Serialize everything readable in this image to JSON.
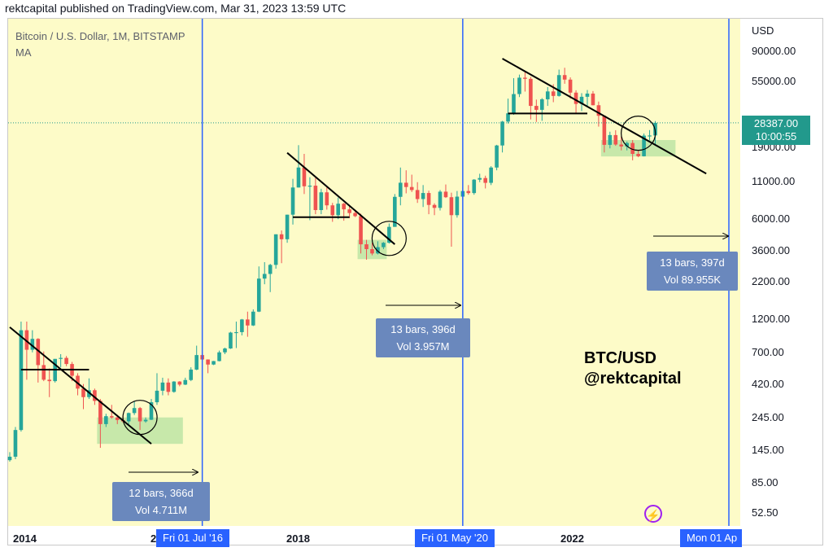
{
  "header": "rektcapital published on TradingView.com, Mar 31, 2023 13:59 UTC",
  "symbol": {
    "title": "Bitcoin / U.S. Dollar, 1M, BITSTAMP",
    "indicator": "MA"
  },
  "price_axis": {
    "currency": "USD",
    "last_price": "28387.00",
    "countdown": "10:00:55"
  },
  "watermark": {
    "line1": "BTC/USD",
    "line2": "@rektcapital"
  },
  "date_markers": [
    {
      "label": "Fri 01 Jul '16"
    },
    {
      "label": "Fri 01 May '20"
    },
    {
      "label": "Mon 01 Ap"
    }
  ],
  "measurements": [
    {
      "bars": "12 bars, 366d",
      "vol": "Vol 4.711M"
    },
    {
      "bars": "13 bars, 396d",
      "vol": "Vol 3.957M"
    },
    {
      "bars": "13 bars, 397d",
      "vol": "Vol 89.955K"
    }
  ],
  "colors": {
    "background": "#fdfbc8",
    "up": "#26a69a",
    "down": "#ef5350",
    "marker": "#2962ff",
    "highlight": "#b9e3a2"
  },
  "icons": [
    "lightning-icon"
  ],
  "chart_data": {
    "type": "candlestick",
    "title": "Bitcoin / U.S. Dollar, 1M, BITSTAMP",
    "y_scale": "log",
    "y_ticks": [
      90000,
      55000,
      19000,
      11000,
      6000,
      3600,
      2200,
      1200,
      700,
      420,
      245,
      145,
      85,
      52.5
    ],
    "y_tick_labels": [
      "90000.00",
      "55000.00",
      "19000.00",
      "11000.00",
      "6000.00",
      "3600.00",
      "2200.00",
      "1200.00",
      "700.00",
      "420.00",
      "245.00",
      "145.00",
      "85.00",
      "52.50"
    ],
    "x_ticks": [
      "2014",
      "2",
      "2018",
      "2022"
    ],
    "grid": false,
    "halving_dates": [
      "2016-07-01",
      "2020-05-01",
      "2024-04-01"
    ],
    "ohlc": [
      [
        "2013-09",
        123,
        140,
        120,
        130
      ],
      [
        "2013-10",
        130,
        210,
        125,
        200
      ],
      [
        "2013-11",
        200,
        1150,
        195,
        1000
      ],
      [
        "2013-12",
        1000,
        1150,
        450,
        730
      ],
      [
        "2014-01",
        730,
        1000,
        700,
        870
      ],
      [
        "2014-02",
        870,
        880,
        430,
        570
      ],
      [
        "2014-03",
        570,
        710,
        440,
        450
      ],
      [
        "2014-04",
        450,
        540,
        340,
        440
      ],
      [
        "2014-05",
        440,
        630,
        430,
        630
      ],
      [
        "2014-06",
        630,
        680,
        550,
        640
      ],
      [
        "2014-07",
        640,
        660,
        560,
        580
      ],
      [
        "2014-08",
        580,
        600,
        440,
        480
      ],
      [
        "2014-09",
        480,
        500,
        350,
        390
      ],
      [
        "2014-10",
        390,
        420,
        280,
        340
      ],
      [
        "2014-11",
        340,
        460,
        330,
        380
      ],
      [
        "2014-12",
        380,
        390,
        300,
        320
      ],
      [
        "2015-01",
        320,
        330,
        150,
        220
      ],
      [
        "2015-02",
        220,
        260,
        210,
        250
      ],
      [
        "2015-03",
        250,
        300,
        240,
        245
      ],
      [
        "2015-04",
        245,
        255,
        220,
        235
      ],
      [
        "2015-05",
        235,
        250,
        225,
        230
      ],
      [
        "2015-06",
        230,
        265,
        220,
        263
      ],
      [
        "2015-07",
        263,
        320,
        255,
        285
      ],
      [
        "2015-08",
        285,
        290,
        200,
        230
      ],
      [
        "2015-09",
        230,
        245,
        225,
        236
      ],
      [
        "2015-10",
        236,
        330,
        235,
        313
      ],
      [
        "2015-11",
        313,
        500,
        300,
        377
      ],
      [
        "2015-12",
        377,
        465,
        350,
        430
      ],
      [
        "2016-01",
        430,
        460,
        350,
        370
      ],
      [
        "2016-02",
        370,
        440,
        365,
        437
      ],
      [
        "2016-03",
        437,
        440,
        405,
        416
      ],
      [
        "2016-04",
        416,
        465,
        413,
        448
      ],
      [
        "2016-05",
        448,
        550,
        440,
        530
      ],
      [
        "2016-06",
        530,
        780,
        525,
        670
      ],
      [
        "2016-07",
        670,
        700,
        600,
        624
      ],
      [
        "2016-08",
        624,
        625,
        500,
        575
      ],
      [
        "2016-09",
        575,
        610,
        570,
        608
      ],
      [
        "2016-10",
        608,
        720,
        605,
        700
      ],
      [
        "2016-11",
        700,
        755,
        680,
        745
      ],
      [
        "2016-12",
        745,
        975,
        740,
        963
      ],
      [
        "2017-01",
        963,
        1150,
        750,
        970
      ],
      [
        "2017-02",
        970,
        1200,
        920,
        1190
      ],
      [
        "2017-03",
        1190,
        1350,
        900,
        1080
      ],
      [
        "2017-04",
        1080,
        1400,
        1070,
        1350
      ],
      [
        "2017-05",
        1350,
        2800,
        1340,
        2300
      ],
      [
        "2017-06",
        2300,
        3000,
        2100,
        2480
      ],
      [
        "2017-07",
        2480,
        2920,
        1850,
        2870
      ],
      [
        "2017-08",
        2870,
        4700,
        2700,
        4700
      ],
      [
        "2017-09",
        4700,
        5000,
        2950,
        4340
      ],
      [
        "2017-10",
        4340,
        6450,
        4100,
        6450
      ],
      [
        "2017-11",
        6450,
        11500,
        5500,
        10000
      ],
      [
        "2017-12",
        10000,
        19800,
        10000,
        13800
      ],
      [
        "2018-01",
        13800,
        17200,
        9000,
        10200
      ],
      [
        "2018-02",
        10200,
        11800,
        5900,
        10300
      ],
      [
        "2018-03",
        10300,
        11700,
        6500,
        6950
      ],
      [
        "2018-04",
        6950,
        9800,
        6500,
        9250
      ],
      [
        "2018-05",
        9250,
        10000,
        7000,
        7500
      ],
      [
        "2018-06",
        7500,
        7800,
        5750,
        6400
      ],
      [
        "2018-07",
        6400,
        8500,
        6000,
        7700
      ],
      [
        "2018-08",
        7700,
        7800,
        5850,
        7030
      ],
      [
        "2018-09",
        7030,
        7400,
        6100,
        6625
      ],
      [
        "2018-10",
        6625,
        7000,
        6200,
        6300
      ],
      [
        "2018-11",
        6300,
        6550,
        3450,
        4000
      ],
      [
        "2018-12",
        4000,
        4300,
        3120,
        3700
      ],
      [
        "2019-01",
        3700,
        4100,
        3350,
        3450
      ],
      [
        "2019-02",
        3450,
        4200,
        3400,
        3820
      ],
      [
        "2019-03",
        3820,
        4150,
        3700,
        4100
      ],
      [
        "2019-04",
        4100,
        5600,
        4050,
        5300
      ],
      [
        "2019-05",
        5300,
        9000,
        5300,
        8600
      ],
      [
        "2019-06",
        8600,
        13800,
        7500,
        10800
      ],
      [
        "2019-07",
        10800,
        13200,
        9100,
        10080
      ],
      [
        "2019-08",
        10080,
        12300,
        9300,
        9600
      ],
      [
        "2019-09",
        9600,
        10900,
        7800,
        8300
      ],
      [
        "2019-10",
        8300,
        10400,
        7300,
        9150
      ],
      [
        "2019-11",
        9150,
        9500,
        6500,
        7550
      ],
      [
        "2019-12",
        7550,
        7750,
        6400,
        7200
      ],
      [
        "2020-01",
        7200,
        9600,
        6900,
        9350
      ],
      [
        "2020-02",
        9350,
        10500,
        8450,
        8550
      ],
      [
        "2020-03",
        8550,
        9200,
        3850,
        6400
      ],
      [
        "2020-04",
        6400,
        9450,
        6150,
        8630
      ],
      [
        "2020-05",
        8630,
        10050,
        8100,
        9450
      ],
      [
        "2020-06",
        9450,
        10400,
        8900,
        9140
      ],
      [
        "2020-07",
        9140,
        11450,
        8900,
        11350
      ],
      [
        "2020-08",
        11350,
        12480,
        10900,
        11650
      ],
      [
        "2020-09",
        11650,
        12100,
        9850,
        10780
      ],
      [
        "2020-10",
        10780,
        14100,
        10400,
        13800
      ],
      [
        "2020-11",
        13800,
        19900,
        13200,
        19700
      ],
      [
        "2020-12",
        19700,
        29300,
        17600,
        28950
      ],
      [
        "2021-01",
        28950,
        41950,
        28100,
        33100
      ],
      [
        "2021-02",
        33100,
        58350,
        32300,
        45150
      ],
      [
        "2021-03",
        45150,
        61800,
        43000,
        58800
      ],
      [
        "2021-04",
        58800,
        64900,
        47000,
        57700
      ],
      [
        "2021-05",
        57700,
        59600,
        30000,
        37300
      ],
      [
        "2021-06",
        37300,
        41300,
        28800,
        35000
      ],
      [
        "2021-07",
        35000,
        42300,
        29300,
        41500
      ],
      [
        "2021-08",
        41500,
        50500,
        37300,
        47100
      ],
      [
        "2021-09",
        47100,
        52900,
        39600,
        43800
      ],
      [
        "2021-10",
        43800,
        67000,
        43300,
        61300
      ],
      [
        "2021-11",
        61300,
        69000,
        53300,
        57000
      ],
      [
        "2021-12",
        57000,
        59100,
        42000,
        46200
      ],
      [
        "2022-01",
        46200,
        48000,
        33000,
        38500
      ],
      [
        "2022-02",
        38500,
        45800,
        34300,
        43200
      ],
      [
        "2022-03",
        43200,
        48200,
        37200,
        45500
      ],
      [
        "2022-04",
        45500,
        47400,
        37600,
        37700
      ],
      [
        "2022-05",
        37700,
        40000,
        26700,
        31800
      ],
      [
        "2022-06",
        31800,
        31900,
        17600,
        19900
      ],
      [
        "2022-07",
        19900,
        24600,
        18800,
        23300
      ],
      [
        "2022-08",
        23300,
        25200,
        19600,
        20000
      ],
      [
        "2022-09",
        20000,
        22800,
        18200,
        19400
      ],
      [
        "2022-10",
        19400,
        21000,
        18200,
        20500
      ],
      [
        "2022-11",
        20500,
        21500,
        15500,
        17200
      ],
      [
        "2022-12",
        17200,
        18400,
        16300,
        16550
      ],
      [
        "2023-01",
        16550,
        23900,
        16500,
        23100
      ],
      [
        "2023-02",
        23100,
        25250,
        21400,
        23150
      ],
      [
        "2023-03",
        23150,
        29200,
        19600,
        28387
      ]
    ]
  }
}
